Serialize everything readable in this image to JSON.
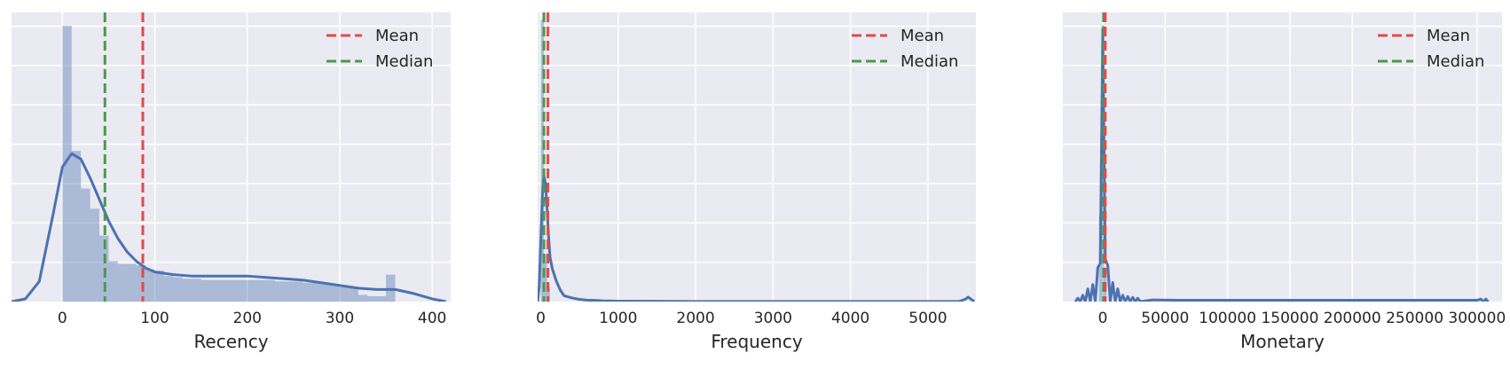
{
  "chart_data": [
    {
      "type": "histogram",
      "xlabel": "Recency",
      "xlim": [
        -55,
        420
      ],
      "ylim": [
        0,
        0.0215
      ],
      "xticks": [
        0,
        100,
        200,
        300,
        400
      ],
      "tick_labels": [
        "0",
        "100",
        "200",
        "300",
        "400"
      ],
      "grid": true,
      "bin_width": 10,
      "bins": [
        0,
        10,
        20,
        30,
        40,
        50,
        60,
        70,
        80,
        90,
        100,
        110,
        120,
        130,
        140,
        150,
        160,
        170,
        180,
        190,
        200,
        210,
        220,
        230,
        240,
        250,
        260,
        270,
        280,
        290,
        300,
        310,
        320,
        330,
        340,
        350
      ],
      "heights": [
        0.0205,
        0.0112,
        0.0084,
        0.0069,
        0.0049,
        0.003,
        0.0028,
        0.0028,
        0.0027,
        0.0024,
        0.0023,
        0.0019,
        0.0018,
        0.0017,
        0.0017,
        0.0016,
        0.0016,
        0.0016,
        0.0016,
        0.0016,
        0.0016,
        0.0016,
        0.0016,
        0.0015,
        0.0015,
        0.0015,
        0.0014,
        0.0014,
        0.0013,
        0.0012,
        0.0011,
        0.001,
        0.0005,
        0.0004,
        0.0004,
        0.002
      ],
      "kde": {
        "x": [
          -55,
          -40,
          -25,
          -10,
          0,
          10,
          20,
          30,
          40,
          50,
          60,
          70,
          80,
          90,
          100,
          120,
          140,
          160,
          180,
          200,
          220,
          240,
          260,
          280,
          300,
          320,
          340,
          360,
          380,
          400,
          415
        ],
        "y": [
          0.0,
          0.0002,
          0.0015,
          0.0065,
          0.01,
          0.011,
          0.0106,
          0.0092,
          0.0076,
          0.006,
          0.0047,
          0.0037,
          0.003,
          0.0025,
          0.0022,
          0.002,
          0.0019,
          0.0019,
          0.0019,
          0.0019,
          0.0018,
          0.0017,
          0.0016,
          0.0014,
          0.0012,
          0.001,
          0.0009,
          0.0009,
          0.0006,
          0.0002,
          0.0
        ]
      },
      "mean": 87,
      "median": 46,
      "legend": [
        "Mean",
        "Median"
      ],
      "legend_position": "upper right"
    },
    {
      "type": "histogram",
      "xlabel": "Frequency",
      "xlim": [
        -40,
        5620
      ],
      "ylim": [
        0,
        0.0195
      ],
      "xticks": [
        0,
        1000,
        2000,
        3000,
        4000,
        5000
      ],
      "tick_labels": [
        "0",
        "1000",
        "2000",
        "3000",
        "4000",
        "5000"
      ],
      "grid": true,
      "bin_width": 40,
      "bins": [
        0,
        40,
        80
      ],
      "heights": [
        0.019,
        0.0032,
        0.001
      ],
      "kde": {
        "x": [
          -40,
          -20,
          0,
          20,
          40,
          60,
          80,
          100,
          120,
          150,
          200,
          250,
          300,
          400,
          500,
          600,
          700,
          800,
          1000,
          1500,
          2000,
          3000,
          4000,
          5000,
          5400,
          5480,
          5520,
          5560,
          5600
        ],
        "y": [
          0.0,
          0.001,
          0.004,
          0.007,
          0.0085,
          0.008,
          0.0065,
          0.0045,
          0.003,
          0.0022,
          0.0014,
          0.0008,
          0.0004,
          0.00025,
          0.00015,
          0.0001,
          8e-05,
          5e-05,
          3e-05,
          2e-05,
          1e-05,
          1e-05,
          1e-05,
          1e-05,
          1e-05,
          0.00015,
          0.0003,
          0.00015,
          0.0
        ]
      },
      "mean": 93,
      "median": 41,
      "legend": [
        "Mean",
        "Median"
      ],
      "legend_position": "upper right"
    },
    {
      "type": "histogram",
      "xlabel": "Monetary",
      "xlim": [
        -32000,
        320000
      ],
      "ylim": [
        0,
        0.00068
      ],
      "xticks": [
        0,
        50000,
        100000,
        150000,
        200000,
        250000,
        300000
      ],
      "tick_labels": [
        "0",
        "50000",
        "100000",
        "150000",
        "200000",
        "250000",
        "300000"
      ],
      "grid": true,
      "bin_width": 2000,
      "bins": [
        -3000,
        -1000,
        1000
      ],
      "heights": [
        0.0002,
        0.00065,
        8e-05
      ],
      "kde": {
        "x": [
          -22000,
          -20000,
          -18000,
          -16000,
          -14000,
          -12000,
          -10000,
          -8000,
          -6000,
          -4000,
          -2000,
          0,
          2000,
          4000,
          6000,
          8000,
          10000,
          12000,
          14000,
          16000,
          18000,
          20000,
          22000,
          24000,
          26000,
          28000,
          30000,
          40000,
          60000,
          100000,
          200000,
          300000,
          303000,
          305000,
          307000,
          309000
        ],
        "y": [
          0.0,
          8e-06,
          0.0,
          1.5e-05,
          0.0,
          3e-05,
          0.0,
          4e-05,
          0.0,
          8e-05,
          9e-05,
          0.00064,
          0.0001,
          8.5e-05,
          0.0,
          4.5e-05,
          0.0,
          3e-05,
          0.0,
          1.5e-05,
          0.0,
          1.2e-05,
          0.0,
          1e-05,
          0.0,
          8e-06,
          0.0,
          4e-06,
          3e-06,
          3e-06,
          3e-06,
          3e-06,
          6e-06,
          0.0,
          6e-06,
          0.0
        ]
      },
      "mean": 2000,
      "median": 600,
      "legend": [
        "Mean",
        "Median"
      ],
      "legend_position": "upper right"
    }
  ],
  "colors": {
    "background": "#EAEAF2",
    "grid": "#FFFFFF",
    "hist": "#4C72B0",
    "kde": "#4C72B0",
    "mean": "#E24A4A",
    "median": "#4A9A4A"
  }
}
